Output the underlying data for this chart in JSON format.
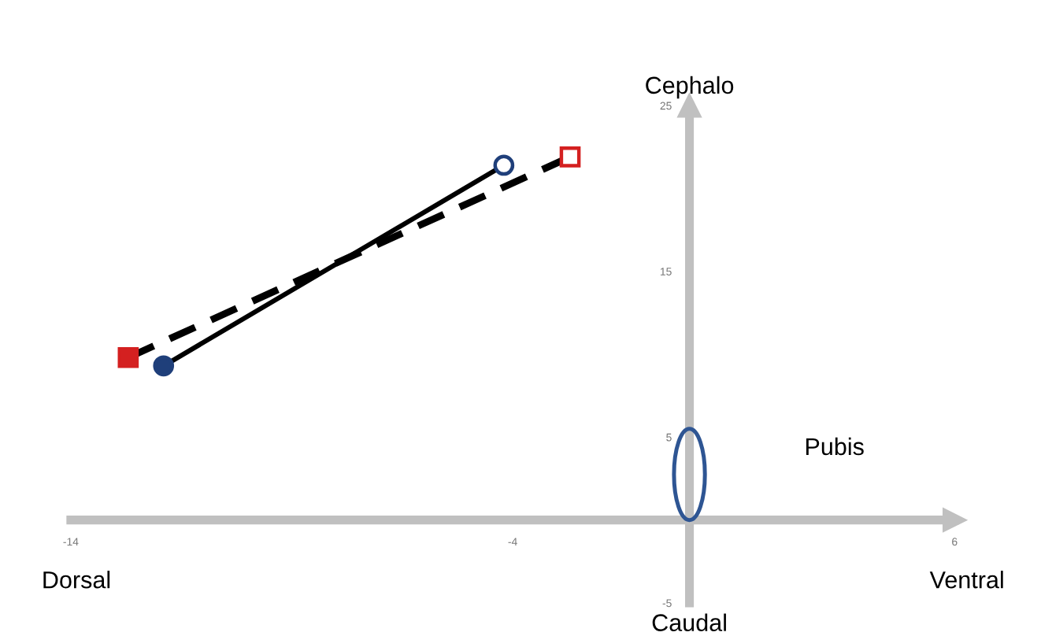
{
  "chart_data": {
    "type": "line",
    "series": [
      {
        "x": [
          -11.9,
          -4.2
        ],
        "values": [
          9.3,
          21.4
        ],
        "color": "#000000",
        "colors": [
          "#1f3f7a",
          "#1f3f7a"
        ],
        "marker": "circle",
        "line_style": "solid"
      },
      {
        "x": [
          -12.7,
          -2.7
        ],
        "values": [
          9.8,
          21.9
        ],
        "color": "#000000",
        "colors": [
          "#d42020",
          "#d42020"
        ],
        "marker": "square",
        "line_style": "dashed"
      }
    ],
    "xlim": [
      -14,
      6
    ],
    "ylim": [
      -5,
      25
    ],
    "xticks": [
      -14,
      -4,
      6
    ],
    "yticks": [
      25,
      15,
      5,
      -5
    ],
    "annotations": [
      "Cephalo",
      "Caudal",
      "Dorsal",
      "Ventral",
      "Pubis"
    ],
    "grid": false
  }
}
